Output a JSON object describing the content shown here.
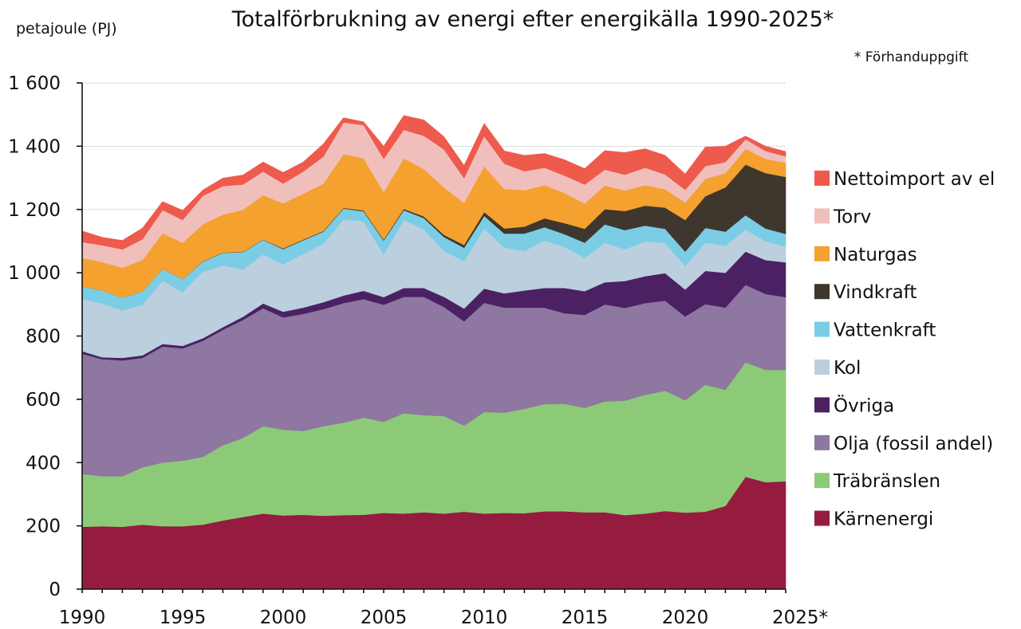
{
  "chart_data": {
    "type": "area",
    "stacked": true,
    "title": "Totalförbrukning av energi efter energikälla 1990-2025*",
    "ylabel": "petajoule (PJ)",
    "note": "* Förhanduppgift",
    "ylim": [
      0,
      1600
    ],
    "yticks": [
      0,
      200,
      400,
      600,
      800,
      1000,
      1200,
      1400,
      1600
    ],
    "ytick_labels": [
      "0",
      "200",
      "400",
      "600",
      "800",
      "1 000",
      "1 200",
      "1 400",
      "1 600"
    ],
    "xticks": [
      1990,
      1995,
      2000,
      2005,
      2010,
      2015,
      2020,
      2025
    ],
    "xtick_labels": [
      "1990",
      "1995",
      "2000",
      "2005",
      "2010",
      "2015",
      "2020",
      "2025*"
    ],
    "grid": "horizontal",
    "legend_position": "right",
    "x": [
      1990,
      1991,
      1992,
      1993,
      1994,
      1995,
      1996,
      1997,
      1998,
      1999,
      2000,
      2001,
      2002,
      2003,
      2004,
      2005,
      2006,
      2007,
      2008,
      2009,
      2010,
      2011,
      2012,
      2013,
      2014,
      2015,
      2016,
      2017,
      2018,
      2019,
      2020,
      2021,
      2022,
      2023,
      2024,
      2025
    ],
    "series": [
      {
        "name": "Kärnenergi",
        "color": "#951b3f",
        "values": [
          197,
          199,
          197,
          204,
          199,
          199,
          204,
          217,
          228,
          239,
          233,
          235,
          232,
          234,
          235,
          241,
          239,
          243,
          239,
          245,
          239,
          241,
          240,
          246,
          246,
          243,
          243,
          234,
          239,
          247,
          242,
          245,
          263,
          355,
          338,
          341
        ]
      },
      {
        "name": "Träbränslen",
        "color": "#8dca78",
        "values": [
          167,
          158,
          160,
          181,
          201,
          207,
          214,
          238,
          250,
          276,
          271,
          265,
          283,
          292,
          307,
          288,
          317,
          307,
          308,
          272,
          321,
          317,
          330,
          339,
          340,
          330,
          350,
          362,
          375,
          380,
          355,
          401,
          367,
          362,
          355,
          352
        ]
      },
      {
        "name": "Olja (fossil andel)",
        "color": "#8e77a0",
        "values": [
          380,
          370,
          366,
          346,
          367,
          355,
          367,
          365,
          373,
          373,
          355,
          370,
          370,
          378,
          375,
          370,
          368,
          374,
          345,
          330,
          345,
          332,
          320,
          305,
          286,
          294,
          307,
          293,
          290,
          285,
          265,
          255,
          260,
          245,
          240,
          230
        ]
      },
      {
        "name": "Övriga",
        "color": "#4b2164",
        "values": [
          8,
          6,
          8,
          8,
          8,
          8,
          8,
          8,
          10,
          15,
          18,
          20,
          22,
          24,
          26,
          24,
          28,
          28,
          32,
          40,
          45,
          45,
          54,
          62,
          80,
          75,
          70,
          85,
          85,
          87,
          85,
          105,
          110,
          105,
          107,
          110
        ]
      },
      {
        "name": "Kol",
        "color": "#bccfde",
        "values": [
          165,
          170,
          150,
          160,
          200,
          170,
          210,
          195,
          150,
          155,
          150,
          170,
          185,
          240,
          220,
          135,
          215,
          185,
          145,
          150,
          190,
          145,
          125,
          150,
          130,
          105,
          125,
          100,
          110,
          95,
          75,
          90,
          85,
          70,
          60,
          50
        ]
      },
      {
        "name": "Vattenkraft",
        "color": "#7acde4",
        "values": [
          40,
          41,
          40,
          42,
          37,
          41,
          32,
          40,
          54,
          46,
          48,
          43,
          38,
          35,
          31,
          44,
          31,
          36,
          44,
          42,
          40,
          44,
          55,
          42,
          40,
          48,
          58,
          61,
          50,
          45,
          45,
          46,
          45,
          45,
          40,
          40
        ]
      },
      {
        "name": "Vindkraft",
        "color": "#3f362d",
        "values": [
          0,
          0,
          0,
          0,
          0,
          0,
          1,
          1,
          1,
          1,
          2,
          2,
          2,
          2,
          3,
          3,
          4,
          5,
          7,
          9,
          12,
          16,
          22,
          28,
          35,
          44,
          48,
          60,
          63,
          67,
          100,
          100,
          140,
          160,
          175,
          180
        ]
      },
      {
        "name": "Naturgas",
        "color": "#f4a130",
        "values": [
          90,
          90,
          95,
          100,
          113,
          115,
          117,
          120,
          133,
          140,
          143,
          145,
          150,
          170,
          165,
          150,
          160,
          150,
          150,
          133,
          145,
          125,
          115,
          105,
          95,
          80,
          75,
          65,
          65,
          58,
          55,
          55,
          45,
          50,
          45,
          45
        ]
      },
      {
        "name": "Torv",
        "color": "#f0bfbc",
        "values": [
          50,
          53,
          58,
          65,
          73,
          72,
          90,
          90,
          80,
          75,
          62,
          70,
          85,
          100,
          105,
          105,
          90,
          105,
          120,
          78,
          95,
          80,
          60,
          55,
          55,
          60,
          50,
          50,
          55,
          47,
          40,
          40,
          35,
          30,
          25,
          20
        ]
      },
      {
        "name": "Nettoimport av el",
        "color": "#ee5a4c",
        "values": [
          35,
          25,
          28,
          35,
          27,
          30,
          18,
          25,
          30,
          30,
          35,
          30,
          40,
          15,
          10,
          40,
          45,
          50,
          40,
          40,
          40,
          40,
          50,
          45,
          50,
          50,
          60,
          70,
          60,
          60,
          50,
          60,
          50,
          10,
          15,
          15
        ]
      }
    ]
  }
}
